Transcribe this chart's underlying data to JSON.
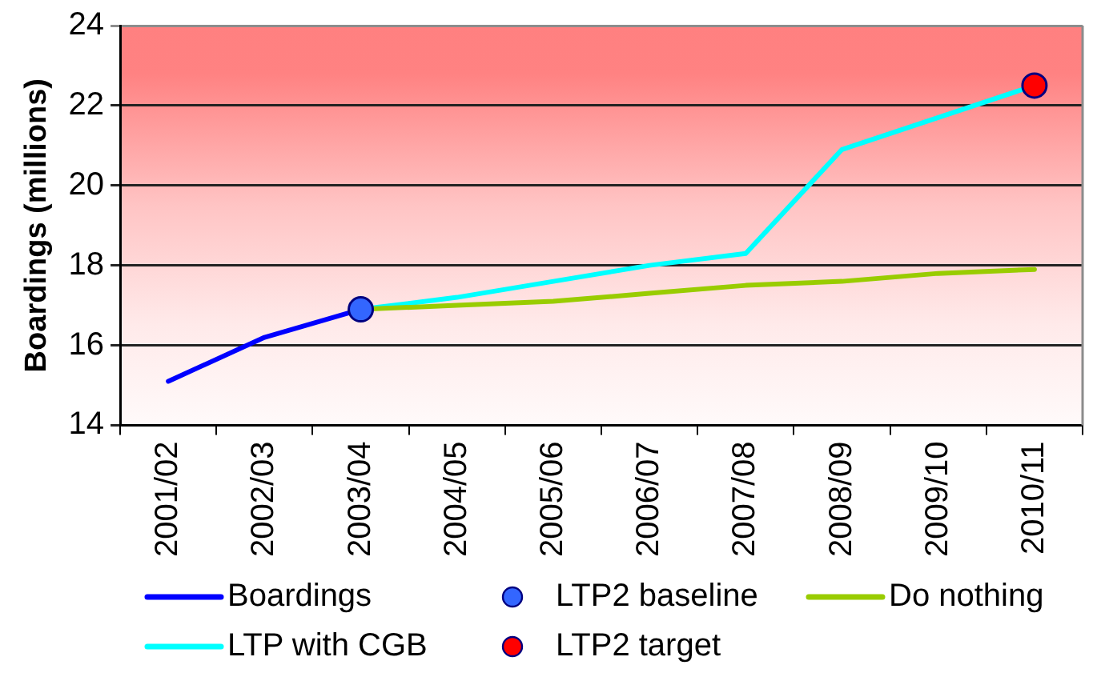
{
  "chart_data": {
    "type": "line",
    "ylabel": "Boardings (millions)",
    "categories": [
      "2001/02",
      "2002/03",
      "2003/04",
      "2004/05",
      "2005/06",
      "2006/07",
      "2007/08",
      "2008/09",
      "2009/10",
      "2010/11"
    ],
    "ylim": [
      14,
      24
    ],
    "yticks": [
      14,
      16,
      18,
      20,
      22,
      24
    ],
    "grid": "y",
    "legend": "bottom",
    "series": [
      {
        "name": "Boardings",
        "marker": "none",
        "color": "#0000ff",
        "values": [
          15.1,
          16.2,
          16.9,
          null,
          null,
          null,
          null,
          null,
          null,
          null
        ]
      },
      {
        "name": "LTP2 baseline",
        "type": "scatter",
        "marker": "circle",
        "color": "#3366ff",
        "values": [
          null,
          null,
          16.9,
          null,
          null,
          null,
          null,
          null,
          null,
          null
        ]
      },
      {
        "name": "Do nothing",
        "marker": "none",
        "color": "#99cc00",
        "values": [
          null,
          null,
          16.9,
          17.0,
          17.1,
          17.3,
          17.5,
          17.6,
          17.8,
          17.9
        ]
      },
      {
        "name": "LTP with CGB",
        "marker": "none",
        "color": "#00ffff",
        "values": [
          null,
          null,
          16.9,
          17.2,
          17.6,
          18.0,
          18.3,
          20.9,
          21.7,
          22.5
        ]
      },
      {
        "name": "LTP2 target",
        "type": "scatter",
        "marker": "circle",
        "color": "#ff0000",
        "values": [
          null,
          null,
          null,
          null,
          null,
          null,
          null,
          null,
          null,
          22.5
        ]
      }
    ]
  }
}
